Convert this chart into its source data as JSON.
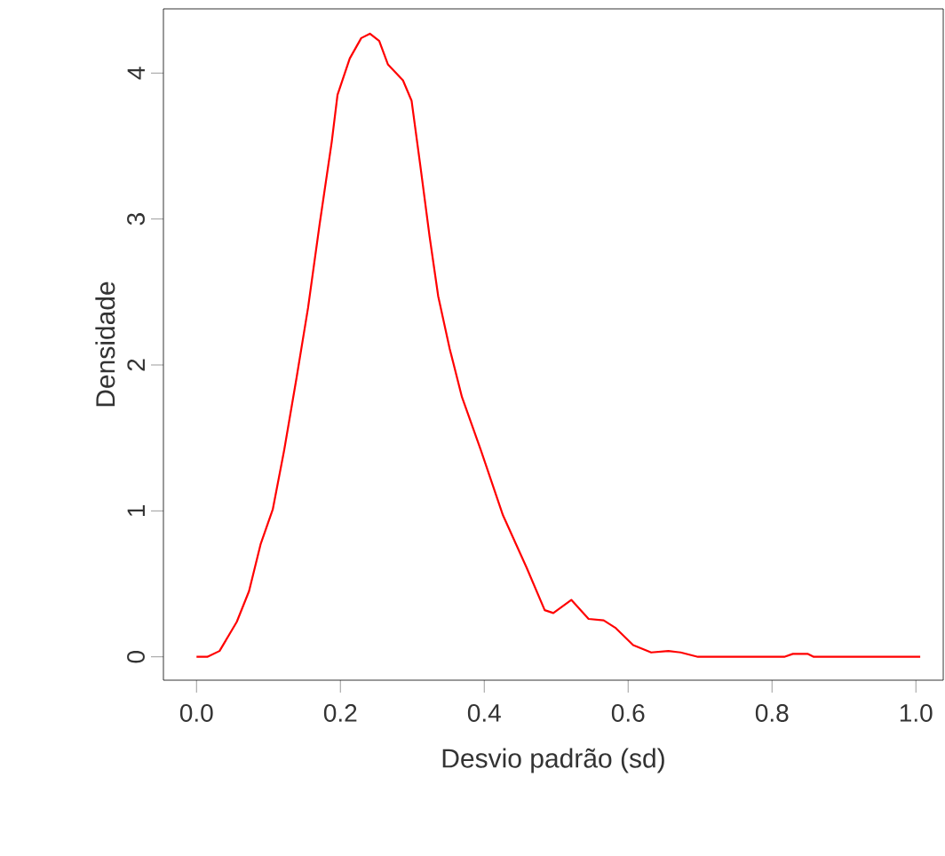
{
  "chart_data": {
    "type": "line",
    "xlabel": "Desvio padrão (sd)",
    "ylabel": "Densidade",
    "x": [
      0.0,
      0.015,
      0.032,
      0.056,
      0.073,
      0.089,
      0.106,
      0.122,
      0.139,
      0.155,
      0.171,
      0.188,
      0.196,
      0.213,
      0.229,
      0.241,
      0.254,
      0.266,
      0.287,
      0.299,
      0.311,
      0.324,
      0.336,
      0.352,
      0.369,
      0.395,
      0.426,
      0.459,
      0.484,
      0.496,
      0.521,
      0.545,
      0.566,
      0.582,
      0.607,
      0.632,
      0.656,
      0.673,
      0.697,
      0.817,
      0.829,
      0.85,
      0.858,
      1.006
    ],
    "values": [
      0,
      0,
      0.04,
      0.24,
      0.45,
      0.77,
      1.01,
      1.42,
      1.91,
      2.39,
      2.96,
      3.53,
      3.85,
      4.1,
      4.24,
      4.27,
      4.22,
      4.06,
      3.95,
      3.81,
      3.37,
      2.88,
      2.47,
      2.11,
      1.78,
      1.42,
      0.97,
      0.61,
      0.32,
      0.3,
      0.39,
      0.26,
      0.25,
      0.2,
      0.08,
      0.03,
      0.04,
      0.03,
      0,
      0,
      0.02,
      0.02,
      0,
      0
    ],
    "color": "#ff0000",
    "marker": "none",
    "line_style": "solid",
    "grid": false,
    "xlim": [
      -0.046,
      1.038
    ],
    "ylim": [
      -0.16,
      4.44
    ],
    "xticks": [
      {
        "value": 0,
        "label": "0.0"
      },
      {
        "value": 0.2,
        "label": "0.2"
      },
      {
        "value": 0.4,
        "label": "0.4"
      },
      {
        "value": 0.6,
        "label": "0.6"
      },
      {
        "value": 0.8,
        "label": "0.8"
      },
      {
        "value": 1,
        "label": "1.0"
      }
    ],
    "yticks": [
      0,
      1,
      2,
      3,
      4
    ]
  }
}
